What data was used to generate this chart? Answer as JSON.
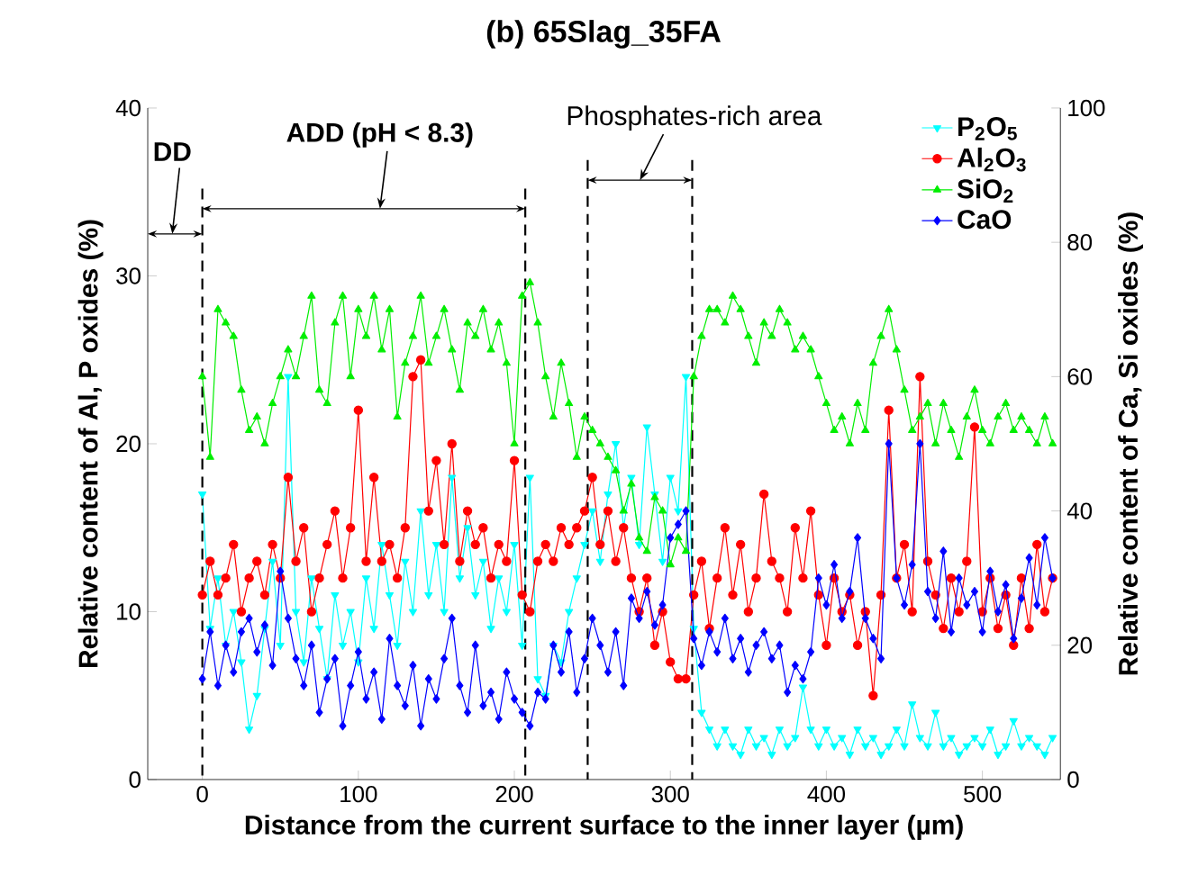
{
  "chart_data": {
    "type": "line",
    "title": "(b) 65Slag_35FA",
    "xlabel": "Distance from the current surface to the inner layer (µm)",
    "ylabel": "Relative content of Al, P oxides (%)",
    "y2label": "Relative content of Ca, Si oxides (%)",
    "x": [
      0,
      5,
      10,
      15,
      20,
      25,
      30,
      35,
      40,
      45,
      50,
      55,
      60,
      65,
      70,
      75,
      80,
      85,
      90,
      95,
      100,
      105,
      110,
      115,
      120,
      125,
      130,
      135,
      140,
      145,
      150,
      155,
      160,
      165,
      170,
      175,
      180,
      185,
      190,
      195,
      200,
      205,
      210,
      215,
      220,
      225,
      230,
      235,
      240,
      245,
      250,
      255,
      260,
      265,
      270,
      275,
      280,
      285,
      290,
      295,
      300,
      305,
      310,
      315,
      320,
      325,
      330,
      335,
      340,
      345,
      350,
      355,
      360,
      365,
      370,
      375,
      380,
      385,
      390,
      395,
      400,
      405,
      410,
      415,
      420,
      425,
      430,
      435,
      440,
      445,
      450,
      455,
      460,
      465,
      470,
      475,
      480,
      485,
      490,
      495,
      500,
      505,
      510,
      515,
      520,
      525,
      530,
      535,
      540,
      545
    ],
    "series": [
      {
        "name": "P$_{2}$O$_{5}$",
        "color": "#00ffff",
        "marker": "triangle down",
        "axis": "y",
        "values": [
          17,
          9,
          12,
          8,
          10,
          7,
          3,
          5,
          9,
          13,
          8,
          24,
          10,
          7,
          12,
          9,
          6,
          11,
          8,
          10,
          7,
          12,
          9,
          14,
          11,
          8,
          13,
          10,
          16,
          11,
          14,
          10,
          18,
          12,
          15,
          11,
          13,
          9,
          12,
          10,
          14,
          8,
          18,
          6,
          5,
          8,
          7,
          10,
          12,
          14,
          16,
          13,
          17,
          20,
          15,
          18,
          14,
          21,
          17,
          13,
          18,
          16,
          24,
          9,
          4,
          3,
          2,
          3,
          2,
          1.5,
          3,
          2,
          2.5,
          1.5,
          3,
          2,
          2.5,
          5.5,
          3,
          2,
          3,
          2,
          2.5,
          1.5,
          3,
          2,
          2.5,
          1.5,
          2,
          3,
          2,
          4.5,
          2.5,
          2,
          4,
          2,
          2.5,
          1.5,
          2,
          2.5,
          2,
          3,
          1.5,
          2,
          3.5,
          2,
          2.5,
          2,
          1.5,
          2.5
        ]
      },
      {
        "name": "Al$_{2}$O$_{3}$",
        "color": "#ff0000",
        "marker": "circle",
        "axis": "y",
        "values": [
          11,
          13,
          11,
          12,
          14,
          10,
          12,
          13,
          11,
          14,
          12,
          18,
          13,
          15,
          10,
          12,
          14,
          16,
          12,
          15,
          22,
          13,
          18,
          13,
          14,
          12,
          15,
          24,
          25,
          16,
          19,
          14,
          20,
          13,
          16,
          14,
          15,
          12,
          14,
          13,
          19,
          11,
          10,
          13,
          14,
          13,
          15,
          14,
          15,
          16,
          18,
          14,
          16,
          13,
          15,
          12,
          10,
          12,
          8,
          10,
          7,
          6,
          6,
          11,
          13,
          9,
          12,
          15,
          11,
          14,
          10,
          12,
          17,
          13,
          12,
          10,
          15,
          12,
          16,
          11,
          8,
          12,
          10,
          11,
          8,
          10,
          5,
          11,
          22,
          12,
          14,
          10,
          24,
          13,
          11,
          9,
          12,
          10,
          13,
          21,
          10,
          12,
          9,
          11,
          8,
          12,
          9,
          14,
          10,
          12
        ]
      },
      {
        "name": "SiO$_{2}$",
        "color": "#00ee00",
        "marker": "triangle",
        "axis": "y2",
        "values": [
          60,
          48,
          70,
          68,
          66,
          58,
          52,
          54,
          50,
          56,
          60,
          64,
          60,
          66,
          72,
          58,
          56,
          68,
          72,
          60,
          70,
          66,
          72,
          64,
          70,
          54,
          62,
          66,
          72,
          62,
          66,
          70,
          64,
          58,
          68,
          66,
          70,
          64,
          68,
          62,
          50,
          72,
          74,
          68,
          60,
          54,
          62,
          56,
          48,
          54,
          52,
          50,
          48,
          46,
          40,
          44,
          36,
          34,
          42,
          40,
          32,
          36,
          34,
          60,
          66,
          70,
          70,
          68,
          72,
          70,
          66,
          62,
          68,
          66,
          70,
          68,
          64,
          66,
          64,
          60,
          56,
          52,
          54,
          50,
          56,
          52,
          62,
          66,
          70,
          64,
          58,
          52,
          54,
          56,
          50,
          56,
          52,
          48,
          54,
          58,
          52,
          50,
          54,
          56,
          52,
          54,
          52,
          50,
          54,
          50
        ]
      },
      {
        "name": "CaO",
        "color": "#0000ff",
        "marker": "diamond",
        "axis": "y2",
        "values": [
          15,
          22,
          14,
          20,
          16,
          22,
          24,
          19,
          23,
          17,
          31,
          24,
          18,
          14,
          20,
          10,
          15,
          18,
          8,
          14,
          19,
          12,
          16,
          9,
          21,
          14,
          11,
          17,
          8,
          15,
          12,
          18,
          24,
          14,
          10,
          20,
          11,
          13,
          9,
          16,
          12,
          10,
          8,
          13,
          12,
          20,
          16,
          22,
          13,
          18,
          24,
          20,
          16,
          22,
          14,
          27,
          24,
          28,
          23,
          26,
          36,
          38,
          40,
          21,
          17,
          22,
          19,
          24,
          18,
          21,
          16,
          20,
          22,
          18,
          20,
          13,
          17,
          15,
          19,
          30,
          26,
          32,
          24,
          28,
          36,
          24,
          21,
          18,
          50,
          30,
          26,
          32,
          50,
          28,
          24,
          34,
          22,
          30,
          26,
          28,
          22,
          31,
          25,
          29,
          21,
          27,
          33,
          26,
          36,
          30
        ]
      }
    ],
    "xlim": [
      -35,
      550
    ],
    "xticks": [
      0,
      100,
      200,
      300,
      400,
      500
    ],
    "ylim": [
      0,
      40
    ],
    "yticks": [
      0,
      10,
      20,
      30,
      40
    ],
    "y2lim": [
      0,
      100
    ],
    "y2ticks": [
      0,
      20,
      40,
      60,
      80,
      100
    ],
    "ref_lines": [
      {
        "axis": "x",
        "value": 0,
        "line_style": "dashed"
      },
      {
        "axis": "x",
        "value": 207,
        "line_style": "dashed"
      },
      {
        "axis": "x",
        "value": 247,
        "line_style": "dashed"
      },
      {
        "axis": "x",
        "value": 314,
        "line_style": "dashed"
      }
    ],
    "annotations": [
      "DD",
      "ADD (pH < 8.3)",
      "Phosphates-rich area"
    ],
    "legend": "top right",
    "line_style": "solid"
  }
}
